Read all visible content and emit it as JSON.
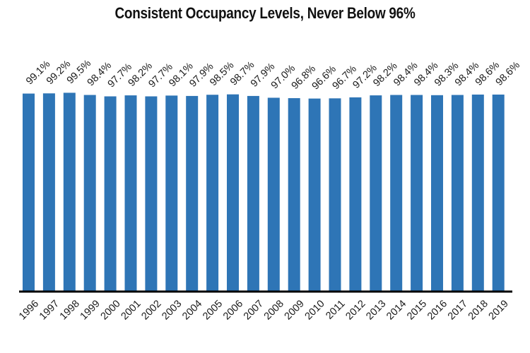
{
  "chart_data": {
    "type": "bar",
    "title": "Consistent Occupancy Levels, Never Below 96%",
    "xlabel": "",
    "ylabel": "",
    "categories": [
      "1996",
      "1997",
      "1998",
      "1999",
      "2000",
      "2001",
      "2002",
      "2003",
      "2004",
      "2005",
      "2006",
      "2007",
      "2008",
      "2009",
      "2010",
      "2011",
      "2012",
      "2013",
      "2014",
      "2015",
      "2016",
      "2017",
      "2018",
      "2019"
    ],
    "values": [
      99.1,
      99.2,
      99.5,
      98.4,
      97.7,
      98.2,
      97.7,
      98.1,
      97.9,
      98.5,
      98.7,
      97.9,
      97.0,
      96.8,
      96.6,
      96.7,
      97.2,
      98.2,
      98.4,
      98.4,
      98.3,
      98.4,
      98.6,
      98.6
    ],
    "data_labels": [
      "99.1%",
      "99.2%",
      "99.5%",
      "98.4%",
      "97.7%",
      "98.2%",
      "97.7%",
      "98.1%",
      "97.9%",
      "98.5%",
      "98.7%",
      "97.9%",
      "97.0%",
      "96.8%",
      "96.6%",
      "96.7%",
      "97.2%",
      "98.2%",
      "98.4%",
      "98.4%",
      "98.3%",
      "98.4%",
      "98.6%",
      "98.6%"
    ],
    "ylim": [
      0,
      100
    ],
    "grid": false,
    "legend": "none",
    "bar_color": "#2e75b6",
    "axis_color": "#000000"
  }
}
